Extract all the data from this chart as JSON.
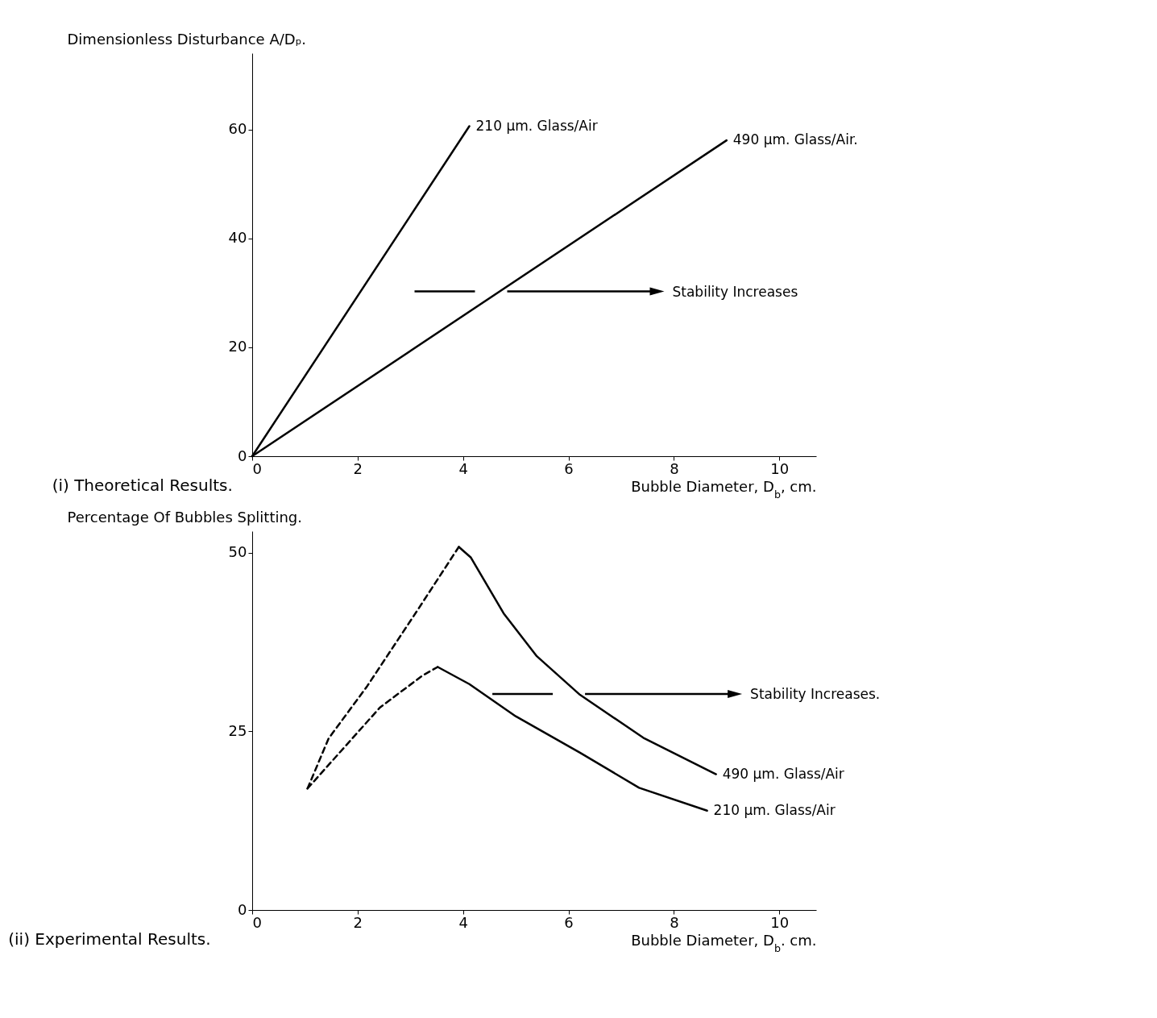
{
  "chart_data": [
    {
      "type": "line",
      "title": "(i) Theoretical Results.",
      "xlabel": "Bubble Diameter, D$_{b}$, cm.",
      "ylabel": "Dimensionless Disturbance A/Dₚ.",
      "xlim": [
        0,
        10.7
      ],
      "ylim": [
        0,
        74
      ],
      "xticks": [
        0,
        2,
        4,
        6,
        8,
        10
      ],
      "yticks": [
        0,
        20,
        40,
        60
      ],
      "grid": false,
      "legend": false,
      "marker": "none",
      "series": [
        {
          "name": "210 µm. Glass/Air",
          "color": "#000000",
          "line_style": "solid",
          "x": [
            0,
            4.12
          ],
          "values": [
            0,
            60.6
          ]
        },
        {
          "name": "490 µm. Glass/Air.",
          "color": "#000000",
          "line_style": "solid",
          "x": [
            0,
            9.0
          ],
          "values": [
            0,
            58
          ]
        }
      ],
      "annotations": [
        "Stability Increases"
      ]
    },
    {
      "type": "line",
      "title": "(ii) Experimental Results.",
      "xlabel": "Bubble Diameter, D$_{b}$. cm.",
      "ylabel": "Percentage Of Bubbles Splitting.",
      "xlim": [
        0,
        10.7
      ],
      "ylim": [
        0,
        53
      ],
      "xticks": [
        0,
        2,
        4,
        6,
        8,
        10
      ],
      "yticks": [
        0,
        25,
        50
      ],
      "grid": false,
      "legend": false,
      "marker": "none",
      "series": [
        {
          "color": "#000000",
          "line_style": "dashed",
          "x": [
            1.05,
            1.45,
            2.18,
            3.15,
            3.92
          ],
          "values": [
            17,
            24,
            31.3,
            42.1,
            50.8
          ]
        },
        {
          "name": "490 µm. Glass/Air",
          "color": "#000000",
          "line_style": "solid",
          "x": [
            3.92,
            4.15,
            4.77,
            5.4,
            6.22,
            7.42,
            8.8
          ],
          "values": [
            50.8,
            49.3,
            41.5,
            35.5,
            30.1,
            24.1,
            19
          ]
        },
        {
          "color": "#000000",
          "line_style": "dashed",
          "x": [
            1.05,
            1.62,
            2.42,
            3.23,
            3.52
          ],
          "values": [
            17,
            21.7,
            28.3,
            32.8,
            34.0
          ]
        },
        {
          "name": "210 µm. Glass/Air",
          "color": "#000000",
          "line_style": "solid",
          "x": [
            3.52,
            4.12,
            5.0,
            6.22,
            7.34,
            8.63
          ],
          "values": [
            34.0,
            31.6,
            27.1,
            22,
            17.1,
            13.9
          ]
        }
      ],
      "annotations": [
        "Stability Increases."
      ]
    }
  ]
}
